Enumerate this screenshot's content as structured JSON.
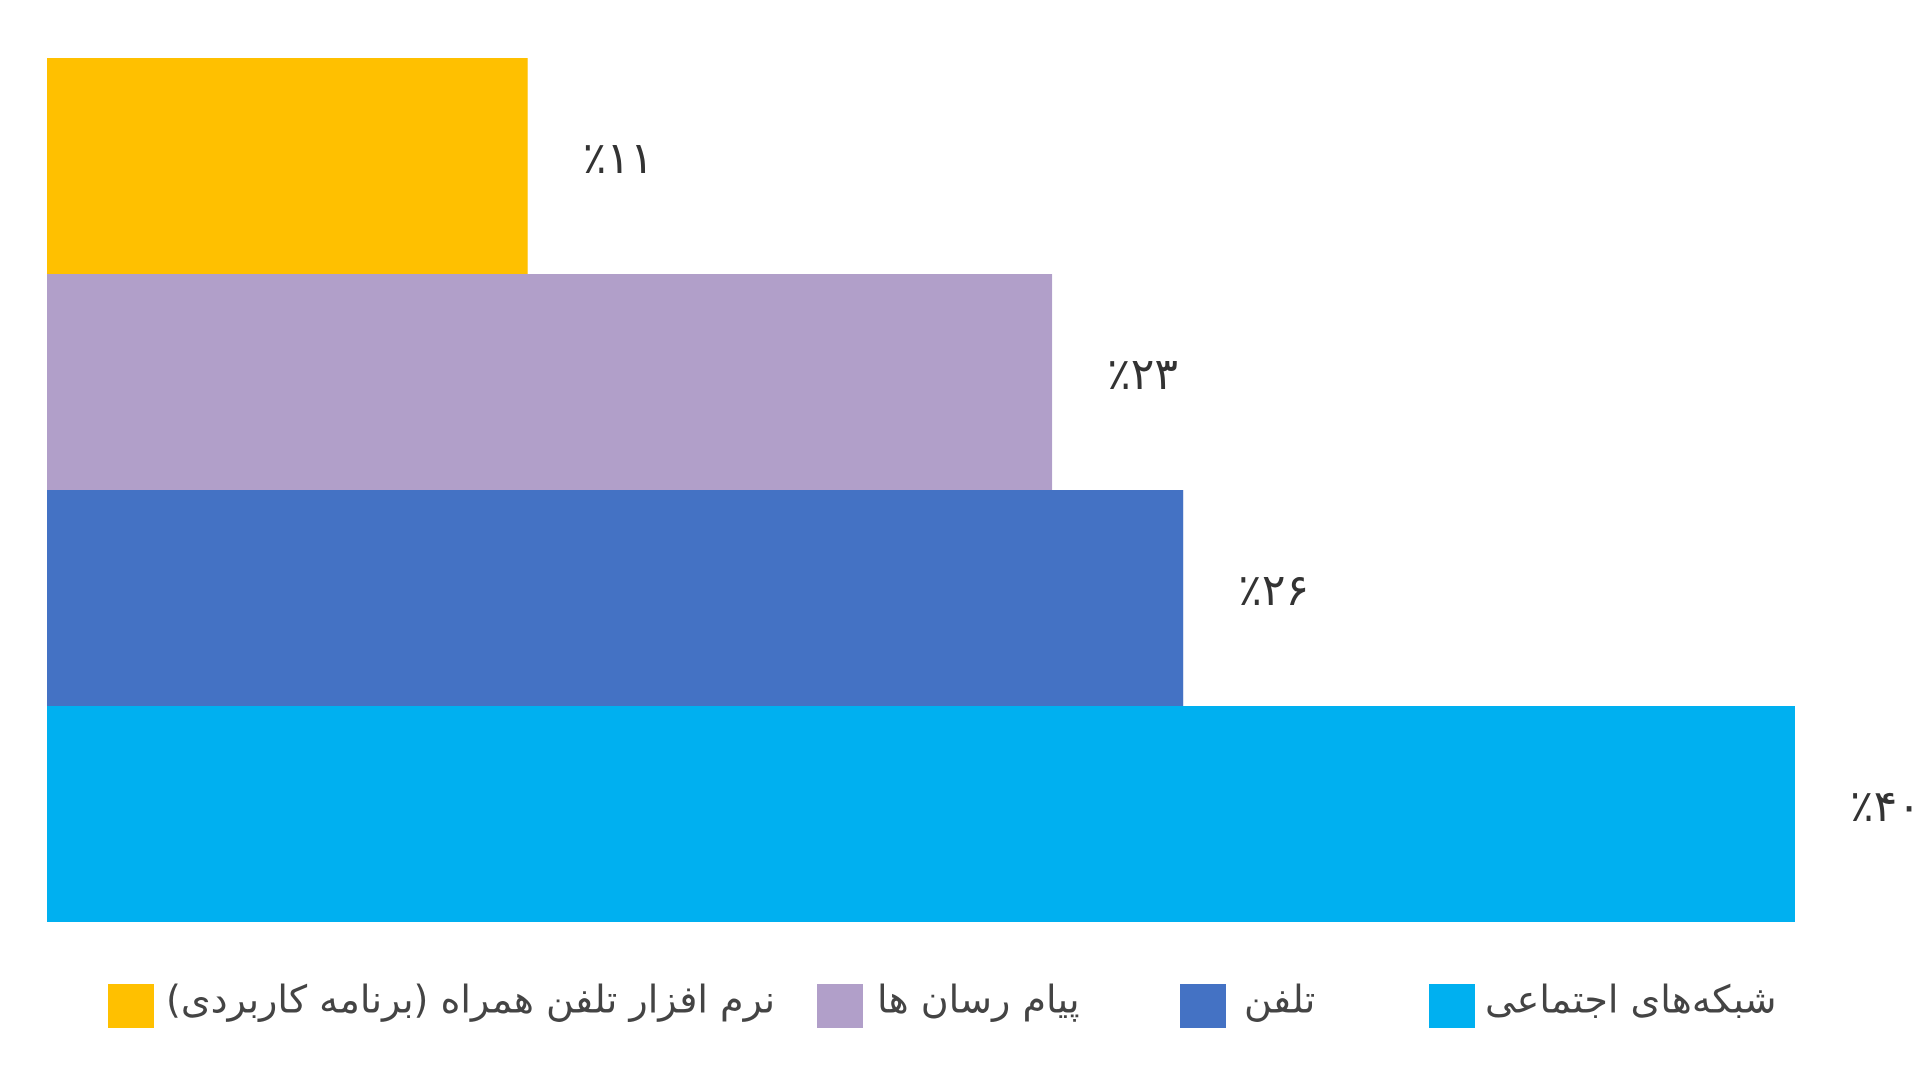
{
  "chart_data": {
    "type": "hbar",
    "categories": [
      "نرم افزار تلفن همراه (برنامه کاربردی)",
      "پیام رسان ها",
      "تلفن",
      "شبکه‌های اجتماعی"
    ],
    "values": [
      11,
      23,
      26,
      40
    ],
    "value_labels": [
      "٪۱۱",
      "٪۲۳",
      "٪۲۶",
      "٪۴۰"
    ],
    "colors": [
      "#FFC000",
      "#B19FC9",
      "#4472C4",
      "#00B0F0"
    ]
  }
}
